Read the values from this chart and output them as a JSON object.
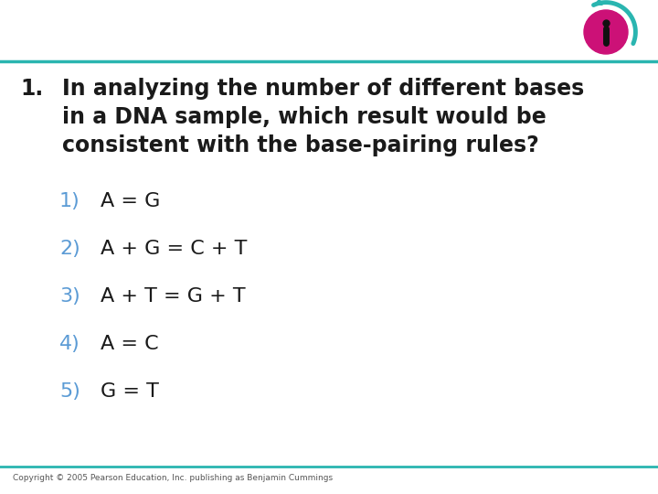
{
  "background_color": "#ffffff",
  "teal_line_color": "#2ab5b0",
  "question_number": "1.",
  "question_text_line1": "In analyzing the number of different bases",
  "question_text_line2": "in a DNA sample, which result would be",
  "question_text_line3": "consistent with the base-pairing rules?",
  "answer_items": [
    {
      "number": "1)",
      "text": "A = G"
    },
    {
      "number": "2)",
      "text": "A + G = C + T"
    },
    {
      "number": "3)",
      "text": "A + T = G + T"
    },
    {
      "number": "4)",
      "text": "A = C"
    },
    {
      "number": "5)",
      "text": "G = T"
    }
  ],
  "answer_number_color": "#5b9bd5",
  "answer_text_color": "#1a1a1a",
  "question_text_color": "#1a1a1a",
  "copyright_text": "Copyright © 2005 Pearson Education, Inc. publishing as Benjamin Cummings",
  "copyright_color": "#555555",
  "icon_magenta_color": "#cc1177",
  "icon_teal_color": "#2ab5b0",
  "icon_body_color": "#111111",
  "figwidth": 7.2,
  "figheight": 5.4,
  "dpi": 100
}
